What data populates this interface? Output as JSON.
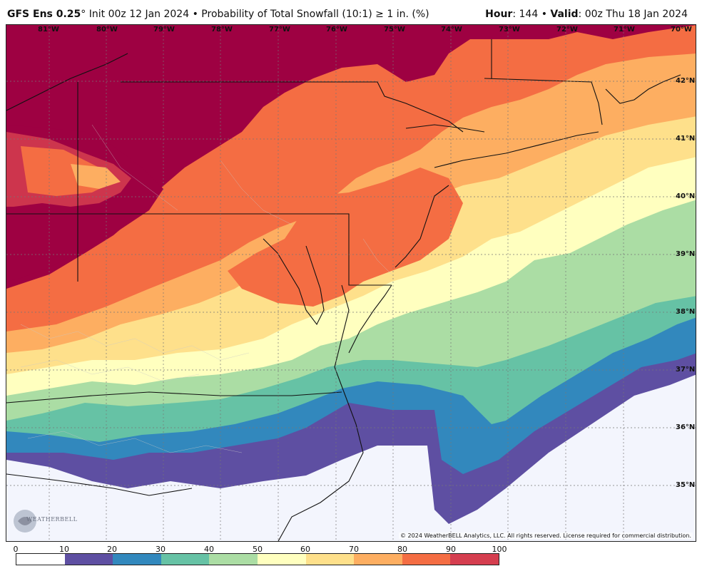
{
  "header": {
    "model": "GFS Ens 0.25",
    "degree": "°",
    "init": "Init 00z 12 Jan 2024",
    "bullet": "•",
    "product": "Probability of Total Snowfall (10:1)",
    "threshold": "≥ 1 in. (%)",
    "hour_label": "Hour",
    "hour_value": ": 144",
    "valid_label": "Valid",
    "valid_value": ": 00z Thu 18 Jan 2024"
  },
  "map": {
    "longitudes": [
      "81°W",
      "80°W",
      "79°W",
      "78°W",
      "77°W",
      "76°W",
      "75°W",
      "74°W",
      "73°W",
      "72°W",
      "71°W",
      "70°W"
    ],
    "latitudes": [
      "42°N",
      "41°N",
      "40°N",
      "39°N",
      "38°N",
      "37°N",
      "36°N",
      "35°N"
    ],
    "logo_text": "WEATHERBELL",
    "copyright": "© 2024 WeatherBELL Analytics, LLC. All rights reserved. License required for commercial distribution."
  },
  "colorbar": {
    "ticks": [
      "0",
      "10",
      "20",
      "30",
      "40",
      "50",
      "60",
      "70",
      "80",
      "90",
      "100"
    ],
    "colors": [
      "#ffffff",
      "#5e4fa2",
      "#3288bd",
      "#66c2a5",
      "#abdda4",
      "#ffffbf",
      "#fee08b",
      "#fdae61",
      "#f46d43",
      "#d53e4f",
      "#9e0142"
    ]
  }
}
